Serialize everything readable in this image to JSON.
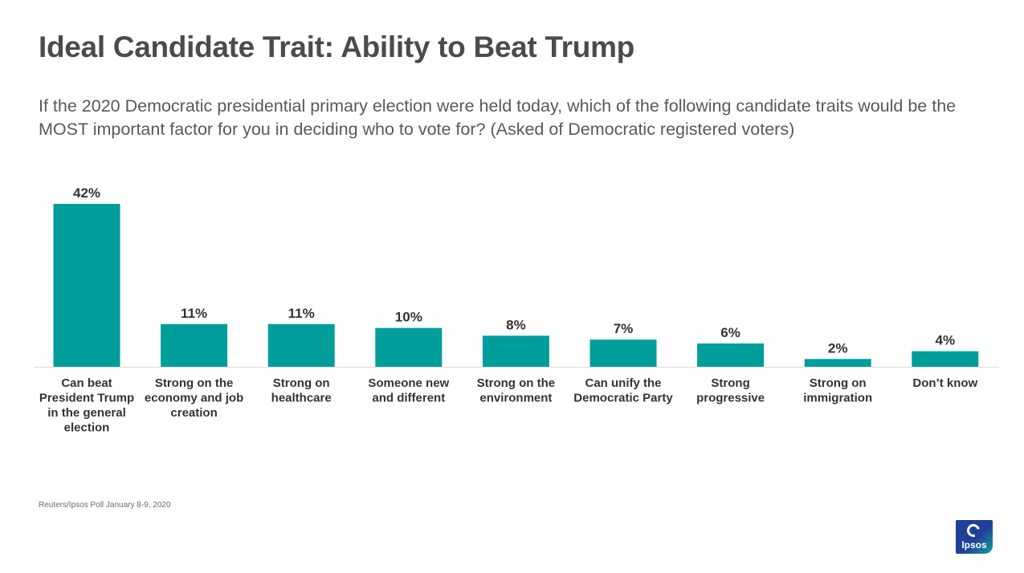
{
  "title": "Ideal Candidate Trait: Ability to Beat Trump",
  "subtitle": "If the 2020 Democratic presidential primary election were held today, which of the following candidate traits would be the MOST important factor for you in deciding who to vote for? (Asked of Democratic registered voters)",
  "source": "Reuters/Ipsos Poll January 8-9, 2020",
  "logo_text": "Ipsos",
  "colors": {
    "bar": "#009e9a",
    "title": "#4b4b4b",
    "text": "#333333",
    "axis": "#d9d9d9"
  },
  "chart_data": {
    "type": "bar",
    "title": "Ideal Candidate Trait: Ability to Beat Trump",
    "xlabel": "",
    "ylabel": "",
    "ylim": [
      0,
      42
    ],
    "grid": false,
    "categories": [
      "Can beat President Trump in the general election",
      "Strong on the economy and job creation",
      "Strong on healthcare",
      "Someone new and different",
      "Strong on the environment",
      "Can unify the Democratic Party",
      "Strong progressive",
      "Strong on immigration",
      "Don’t know"
    ],
    "category_lines": [
      [
        "Can beat",
        "President Trump",
        "in the general",
        "election"
      ],
      [
        "Strong on the",
        "economy and job",
        "creation"
      ],
      [
        "Strong on",
        "healthcare"
      ],
      [
        "Someone new",
        "and different"
      ],
      [
        "Strong on the",
        "environment"
      ],
      [
        "Can unify the",
        "Democratic Party"
      ],
      [
        "Strong",
        "progressive"
      ],
      [
        "Strong on",
        "immigration"
      ],
      [
        "Don’t know"
      ]
    ],
    "values": [
      42,
      11,
      11,
      10,
      8,
      7,
      6,
      2,
      4
    ],
    "value_labels": [
      "42%",
      "11%",
      "11%",
      "10%",
      "8%",
      "7%",
      "6%",
      "2%",
      "4%"
    ]
  }
}
